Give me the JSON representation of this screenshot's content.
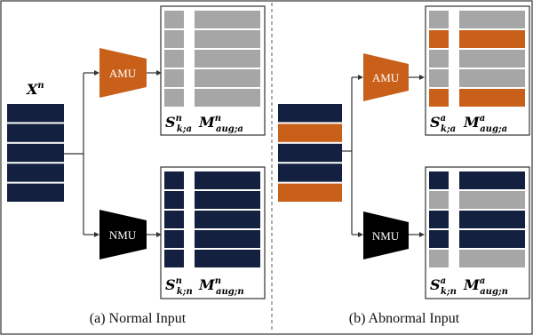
{
  "colors": {
    "navy": "#14203f",
    "orange": "#c8601a",
    "gray": "#a6a6a6",
    "black": "#000000",
    "line": "#333333"
  },
  "panel_a": {
    "caption": "(a)  Normal Input",
    "input_label": {
      "main": "X",
      "sup": "n"
    },
    "input_stripes": [
      "navy",
      "navy",
      "navy",
      "navy",
      "navy"
    ],
    "top_unit": "AMU",
    "bottom_unit": "NMU",
    "top_output": {
      "s_label": {
        "main": "S",
        "sup": "n",
        "sub": "k;a"
      },
      "m_label": {
        "main": "M",
        "sup": "n",
        "sub": "aug;a"
      },
      "rows": [
        "gray",
        "gray",
        "gray",
        "gray",
        "gray"
      ]
    },
    "bottom_output": {
      "s_label": {
        "main": "S",
        "sup": "n",
        "sub": "k;n"
      },
      "m_label": {
        "main": "M",
        "sup": "n",
        "sub": "aug;n"
      },
      "rows": [
        "navy",
        "navy",
        "navy",
        "navy",
        "navy"
      ]
    }
  },
  "panel_b": {
    "caption": "(b)  Abnormal Input",
    "input_label": {
      "main": "X",
      "sup": "a"
    },
    "input_stripes": [
      "navy",
      "orange",
      "navy",
      "navy",
      "orange"
    ],
    "top_unit": "AMU",
    "bottom_unit": "NMU",
    "top_output": {
      "s_label": {
        "main": "S",
        "sup": "a",
        "sub": "k;a"
      },
      "m_label": {
        "main": "M",
        "sup": "a",
        "sub": "aug;a"
      },
      "rows": [
        "gray",
        "orange",
        "gray",
        "gray",
        "orange"
      ]
    },
    "bottom_output": {
      "s_label": {
        "main": "S",
        "sup": "a",
        "sub": "k;n"
      },
      "m_label": {
        "main": "M",
        "sup": "a",
        "sub": "aug;n"
      },
      "rows": [
        "navy",
        "gray",
        "navy",
        "navy",
        "gray"
      ]
    }
  }
}
